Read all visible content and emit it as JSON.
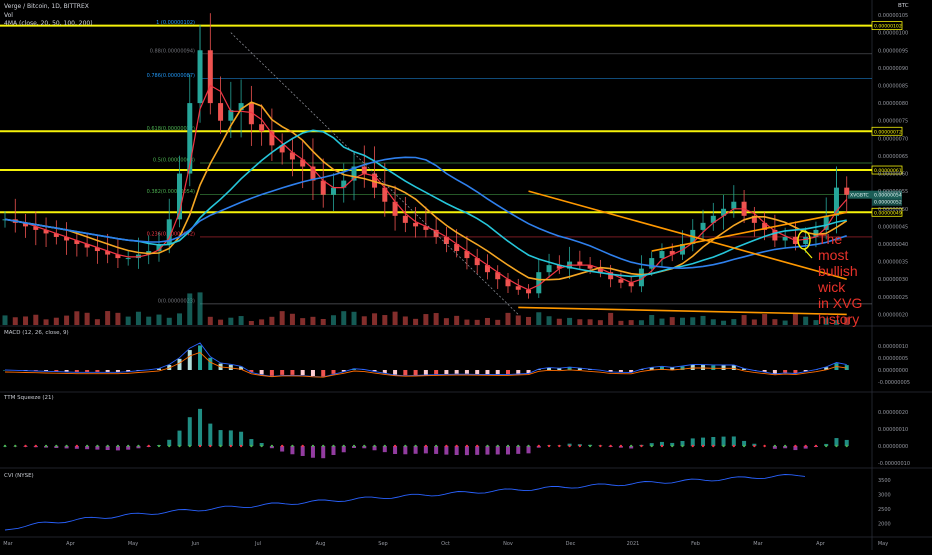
{
  "header": {
    "title": "Verge / Bitcoin, 1D, BITTREX",
    "vol_label": "Vol",
    "ma_label": "4MA (close, 20, 50, 100, 200)",
    "currency": "BTC"
  },
  "annotation": {
    "lines": [
      "The",
      "most",
      "bullish",
      "wick",
      "in XVG",
      "history"
    ]
  },
  "colors": {
    "background": "#000000",
    "yellow_level": "#f5f20a",
    "fib_gray": "#6f7178",
    "fib_blue": "#2196f3",
    "fib_green": "#4caf50",
    "fib_red": "#f23645",
    "ma20": "#f23645",
    "ma50": "#f5a623",
    "ma100": "#26c6da",
    "ma200": "#2f80ed",
    "trend_orange": "#ff9800",
    "annotation": "#e8322a",
    "up": "#26a69a",
    "down": "#ef5350"
  },
  "chart_data": [
    {
      "type": "candlestick",
      "pane": "price",
      "title": "Verge / Bitcoin, 1D, BITTREX",
      "price_axis_labels": [
        "0.00000105",
        "0.00000100",
        "0.00000095",
        "0.00000090",
        "0.00000085",
        "0.00000080",
        "0.00000075",
        "0.00000070",
        "0.00000065",
        "0.00000060",
        "0.00000055",
        "0.00000050",
        "0.00000045",
        "0.00000040",
        "0.00000035",
        "0.00000030",
        "0.00000025",
        "0.00000020"
      ],
      "ylim": [
        1.7e-07,
        1.07e-06
      ],
      "x_axis_labels": [
        "Mar",
        "Apr",
        "May",
        "Jun",
        "Jul",
        "Aug",
        "Sep",
        "Oct",
        "Nov",
        "Dec",
        "2021",
        "Feb",
        "Mar",
        "Apr",
        "May"
      ],
      "horizontal_levels": [
        {
          "label": "0.00000102",
          "value": 1.02e-06,
          "color": "#f5f20a"
        },
        {
          "label": "0.00000072",
          "value": 7.2e-07,
          "color": "#f5f20a"
        },
        {
          "label": "0.00000061",
          "value": 6.1e-07,
          "color": "#f5f20a"
        },
        {
          "label": "0.00000049",
          "value": 4.9e-07,
          "color": "#f5f20a"
        }
      ],
      "fib_levels": [
        {
          "label": "1 (0.00000102)",
          "value": 1.02e-06,
          "color": "#2196f3"
        },
        {
          "label": "0.88(0.00000094)",
          "value": 9.4e-07,
          "color": "#6f7178"
        },
        {
          "label": "0.786(0.00000087)",
          "value": 8.7e-07,
          "color": "#2196f3"
        },
        {
          "label": "0.618(0.00000072)",
          "value": 7.2e-07,
          "color": "#4caf50"
        },
        {
          "label": "0.5(0.00000063)",
          "value": 6.3e-07,
          "color": "#4caf50"
        },
        {
          "label": "0.382(0.00000054)",
          "value": 5.4e-07,
          "color": "#4caf50"
        },
        {
          "label": "0.236(0.00000042)",
          "value": 4.2e-07,
          "color": "#f23645"
        },
        {
          "label": "0(0.00000023)",
          "value": 2.3e-07,
          "color": "#6f7178"
        }
      ],
      "price_tags": [
        {
          "label": "XVGBTC",
          "value": "0.00000054"
        },
        {
          "label": "",
          "value": "0.00000052"
        }
      ],
      "moving_averages": [
        {
          "name": "MA 20",
          "color": "#f23645"
        },
        {
          "name": "MA 50",
          "color": "#f5a623"
        },
        {
          "name": "MA 100",
          "color": "#26c6da"
        },
        {
          "name": "MA 200",
          "color": "#2f80ed"
        }
      ],
      "close_series": [
        4.7e-07,
        4.6e-07,
        4.5e-07,
        4.4e-07,
        4.3e-07,
        4.2e-07,
        4.1e-07,
        4e-07,
        3.9e-07,
        3.8e-07,
        3.7e-07,
        3.6e-07,
        3.6e-07,
        3.7e-07,
        3.8e-07,
        4e-07,
        4.7e-07,
        6e-07,
        8e-07,
        9.5e-07,
        8e-07,
        7.5e-07,
        7.8e-07,
        8e-07,
        7.4e-07,
        7.2e-07,
        6.8e-07,
        6.6e-07,
        6.4e-07,
        6.2e-07,
        5.8e-07,
        5.4e-07,
        5.6e-07,
        5.8e-07,
        6.2e-07,
        6e-07,
        5.6e-07,
        5.2e-07,
        4.8e-07,
        4.6e-07,
        4.5e-07,
        4.4e-07,
        4.2e-07,
        4e-07,
        3.8e-07,
        3.6e-07,
        3.4e-07,
        3.2e-07,
        3e-07,
        2.8e-07,
        2.7e-07,
        2.6e-07,
        3.2e-07,
        3.4e-07,
        3.3e-07,
        3.5e-07,
        3.4e-07,
        3.3e-07,
        3.2e-07,
        3e-07,
        2.9e-07,
        2.8e-07,
        3.3e-07,
        3.6e-07,
        3.8e-07,
        3.7e-07,
        4e-07,
        4.4e-07,
        4.6e-07,
        4.8e-07,
        5e-07,
        5.2e-07,
        4.8e-07,
        4.6e-07,
        4.4e-07,
        4.1e-07,
        4.2e-07,
        4e-07,
        4.2e-07,
        4.4e-07,
        4.8e-07,
        5.6e-07,
        5.4e-07
      ]
    },
    {
      "type": "macd",
      "pane": "macd",
      "title": "MACD (12, 26, close, 9)",
      "axis_labels": [
        "0.00000010",
        "0.00000005",
        "0.00000000",
        "-0.00000005"
      ],
      "series": [
        {
          "name": "MACD",
          "color": "#2962ff"
        },
        {
          "name": "Signal",
          "color": "#ff6d00"
        }
      ]
    },
    {
      "type": "histogram",
      "pane": "squeeze",
      "title": "TTM Squeeze (21)",
      "axis_labels": [
        "0.00000020",
        "0.00000010",
        "0.00000000",
        "-0.00000010"
      ]
    },
    {
      "type": "line",
      "pane": "cvi",
      "title": "CVI (NYSE)",
      "axis_labels": [
        "3500",
        "3000",
        "2500",
        "2000"
      ],
      "series": [
        {
          "color": "#2962ff"
        }
      ]
    }
  ]
}
